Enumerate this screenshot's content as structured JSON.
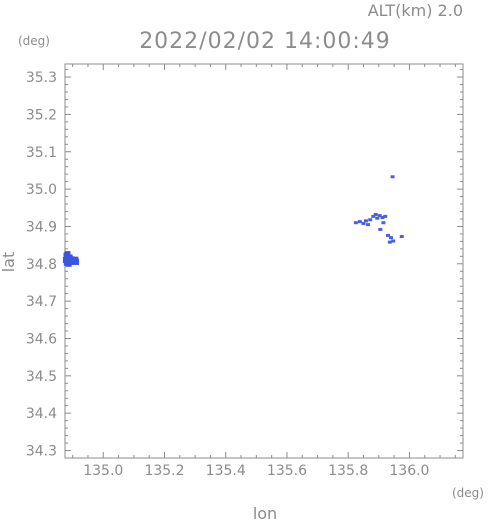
{
  "header": {
    "alt_label": "ALT(km)  2.0",
    "timestamp": "2022/02/02 14:00:49"
  },
  "axes": {
    "y_unit": "(deg)",
    "x_unit": "(deg)",
    "xlabel": "lon",
    "ylabel": "lat"
  },
  "chart_data": {
    "type": "scatter",
    "title": "2022/02/02 14:00:49",
    "xlabel": "lon",
    "ylabel": "lat",
    "x_unit": "(deg)",
    "y_unit": "(deg)",
    "xlim": [
      134.875,
      136.175
    ],
    "ylim": [
      34.28,
      35.335
    ],
    "grid": false,
    "x_ticks": [
      135.0,
      135.2,
      135.4,
      135.6,
      135.8,
      136.0
    ],
    "x_tick_labels": [
      "135.0",
      "135.2",
      "135.4",
      "135.6",
      "135.8",
      "136.0"
    ],
    "y_ticks": [
      34.3,
      34.4,
      34.5,
      34.6,
      34.7,
      34.8,
      34.9,
      35.0,
      35.1,
      35.2,
      35.3
    ],
    "y_tick_labels": [
      "34.3",
      "34.4",
      "34.5",
      "34.6",
      "34.7",
      "34.8",
      "34.9",
      "35.0",
      "35.1",
      "35.2",
      "35.3"
    ],
    "marker_color": "#4a5ee8",
    "marker_color_dense": "#3b56e0",
    "points": [
      {
        "lon": 134.88,
        "lat": 34.822
      },
      {
        "lon": 134.884,
        "lat": 34.815
      },
      {
        "lon": 134.888,
        "lat": 34.808
      },
      {
        "lon": 134.878,
        "lat": 34.81
      },
      {
        "lon": 134.883,
        "lat": 34.826
      },
      {
        "lon": 134.89,
        "lat": 34.817
      },
      {
        "lon": 134.897,
        "lat": 34.812
      },
      {
        "lon": 134.893,
        "lat": 34.805
      },
      {
        "lon": 134.902,
        "lat": 34.808
      },
      {
        "lon": 134.909,
        "lat": 34.811
      },
      {
        "lon": 134.911,
        "lat": 34.805
      },
      {
        "lon": 134.881,
        "lat": 34.803
      },
      {
        "lon": 134.887,
        "lat": 34.8
      },
      {
        "lon": 135.825,
        "lat": 34.91
      },
      {
        "lon": 135.838,
        "lat": 34.913
      },
      {
        "lon": 135.85,
        "lat": 34.908
      },
      {
        "lon": 135.858,
        "lat": 34.915
      },
      {
        "lon": 135.865,
        "lat": 34.905
      },
      {
        "lon": 135.872,
        "lat": 34.918
      },
      {
        "lon": 135.882,
        "lat": 34.927
      },
      {
        "lon": 135.89,
        "lat": 34.932
      },
      {
        "lon": 135.895,
        "lat": 34.922
      },
      {
        "lon": 135.903,
        "lat": 34.929
      },
      {
        "lon": 135.912,
        "lat": 34.924
      },
      {
        "lon": 135.921,
        "lat": 34.927
      },
      {
        "lon": 135.915,
        "lat": 34.91
      },
      {
        "lon": 135.905,
        "lat": 34.892
      },
      {
        "lon": 135.93,
        "lat": 34.876
      },
      {
        "lon": 135.94,
        "lat": 34.87
      },
      {
        "lon": 135.947,
        "lat": 34.861
      },
      {
        "lon": 135.936,
        "lat": 34.858
      },
      {
        "lon": 135.975,
        "lat": 34.873
      },
      {
        "lon": 135.945,
        "lat": 35.033
      }
    ]
  }
}
